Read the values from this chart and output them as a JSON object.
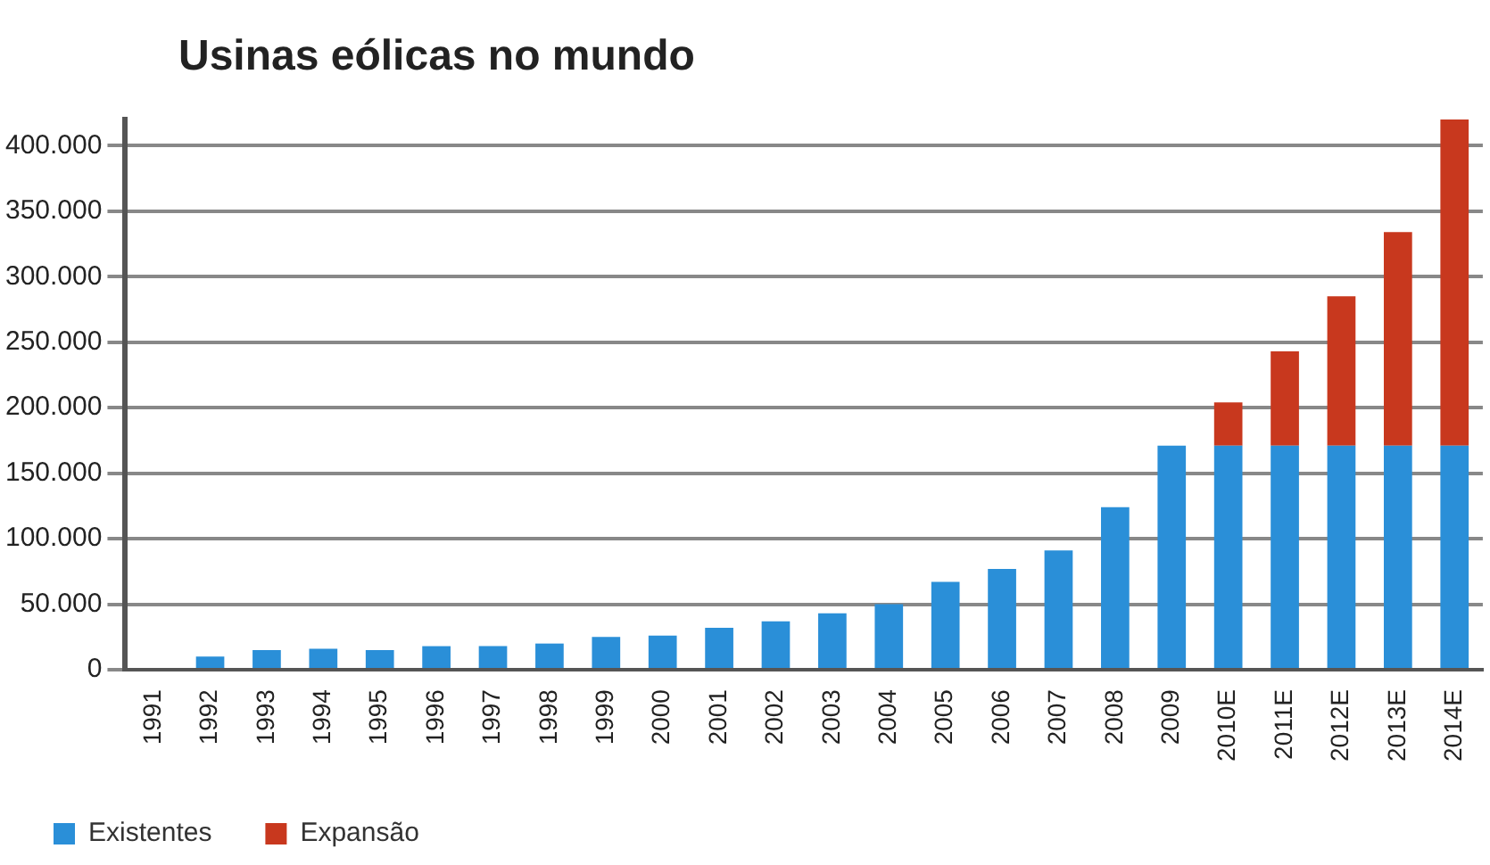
{
  "chart_data": {
    "type": "bar",
    "title": "Usinas eólicas no mundo",
    "stacked": true,
    "categories": [
      "1991",
      "1992",
      "1993",
      "1994",
      "1995",
      "1996",
      "1997",
      "1998",
      "1999",
      "2000",
      "2001",
      "2002",
      "2003",
      "2004",
      "2005",
      "2006",
      "2007",
      "2008",
      "2009",
      "2010E",
      "2011E",
      "2012E",
      "2013E",
      "2014E"
    ],
    "series": [
      {
        "name": "Existentes",
        "color": "#2a8fd8",
        "values": [
          null,
          10000,
          15000,
          16000,
          15000,
          18000,
          18000,
          20000,
          25000,
          26000,
          32000,
          37000,
          43000,
          50000,
          67000,
          77000,
          91000,
          124000,
          171000,
          171000,
          171000,
          171000,
          171000,
          171000
        ]
      },
      {
        "name": "Expansão",
        "color": "#c8381e",
        "values": [
          null,
          null,
          null,
          null,
          null,
          null,
          null,
          null,
          null,
          null,
          null,
          null,
          null,
          null,
          null,
          null,
          null,
          null,
          null,
          33000,
          72000,
          114000,
          163000,
          250000
        ]
      }
    ],
    "ylim": [
      0,
      420000
    ],
    "yticks": [
      {
        "value": 0,
        "label": "0"
      },
      {
        "value": 50000,
        "label": "50.000"
      },
      {
        "value": 100000,
        "label": "100.000"
      },
      {
        "value": 150000,
        "label": "150.000"
      },
      {
        "value": 200000,
        "label": "200.000"
      },
      {
        "value": 250000,
        "label": "250.000"
      },
      {
        "value": 300000,
        "label": "300.000"
      },
      {
        "value": 350000,
        "label": "350.000"
      },
      {
        "value": 400000,
        "label": "400.000"
      }
    ],
    "grid": "y",
    "legend": "bottom left"
  }
}
